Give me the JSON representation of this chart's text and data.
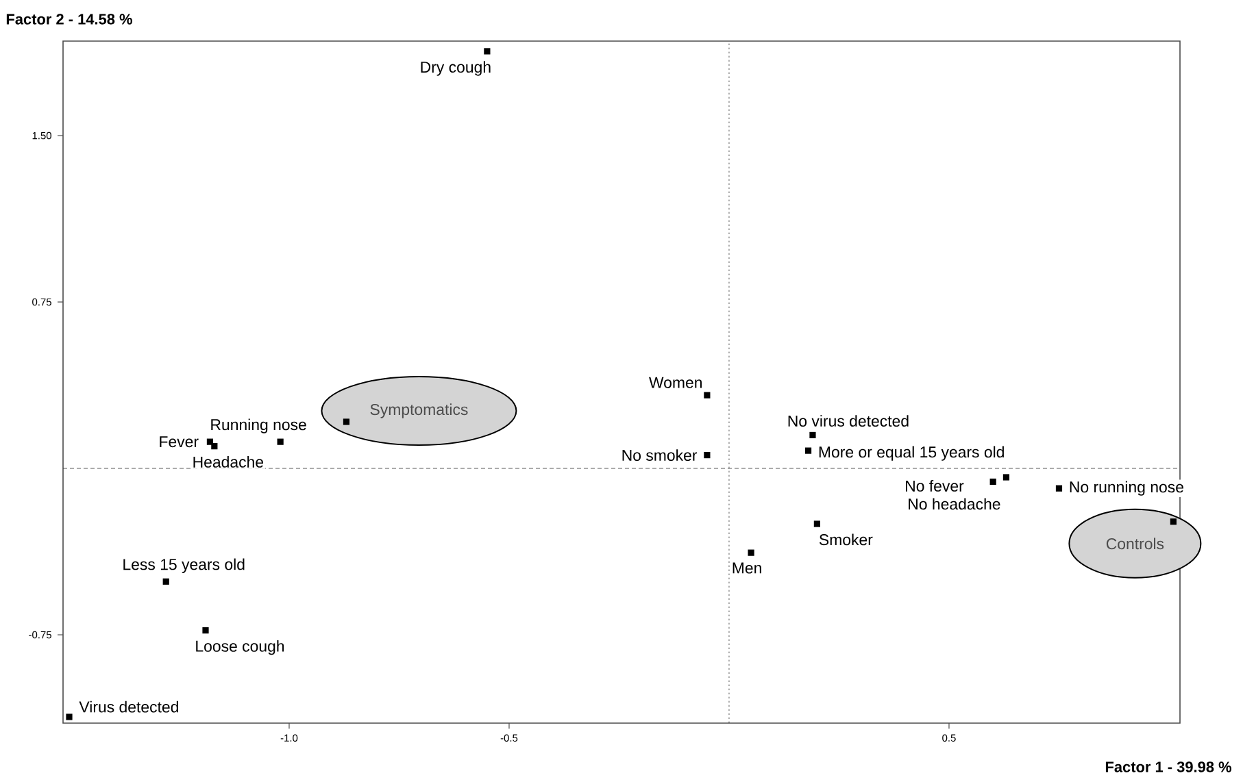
{
  "chart_data": {
    "type": "scatter",
    "xlabel": "Factor 1  -  39.98 %",
    "ylabel": "Factor 2  -  14.58 %",
    "xlim": [
      -1.514,
      1.025
    ],
    "ylim": [
      -1.148,
      1.926
    ],
    "xticks": [
      {
        "value": -1.0,
        "label": "-1.0"
      },
      {
        "value": -0.5,
        "label": "-0.5"
      },
      {
        "value": 0.5,
        "label": "0.5"
      }
    ],
    "yticks": [
      {
        "value": -0.75,
        "label": "-0.75"
      },
      {
        "value": 0.75,
        "label": "0.75"
      },
      {
        "value": 1.5,
        "label": "1.50"
      }
    ],
    "marker": "square",
    "series": [
      {
        "color": "#000000",
        "x": [
          -0.55,
          -0.05,
          -0.05,
          -1.02,
          -1.18,
          -1.17,
          0.19,
          0.18,
          0.6,
          0.63,
          0.75,
          0.2,
          0.05,
          -1.28,
          -1.19,
          -1.5,
          -0.87,
          1.01
        ],
        "values": [
          1.88,
          0.33,
          0.06,
          0.12,
          0.12,
          0.1,
          0.15,
          0.08,
          -0.06,
          -0.04,
          -0.09,
          -0.25,
          -0.38,
          -0.51,
          -0.73,
          -1.12,
          0.21,
          -0.24
        ],
        "value_labels": [
          "Dry cough",
          "Women",
          "No smoker",
          "Running nose",
          "Fever",
          "Headache",
          "No virus detected",
          "More or equal 15 years old",
          "No fever",
          "No headache",
          "No running nose",
          "Smoker",
          "Men",
          "Less 15 years old",
          "Loose cough",
          "Virus detected",
          null,
          null
        ]
      }
    ],
    "annotations": [
      {
        "text": "Symptomatics",
        "x": -0.87,
        "y": 0.21
      },
      {
        "text": "Controls",
        "x": 1.01,
        "y": -0.24
      }
    ],
    "ref_lines": [
      {
        "axis": "x",
        "value": 0,
        "line_style": "dotted"
      },
      {
        "axis": "y",
        "value": 0,
        "line_style": "dashed"
      }
    ]
  }
}
